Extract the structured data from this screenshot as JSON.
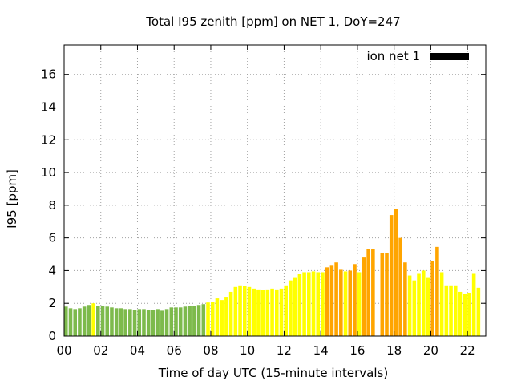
{
  "chart_data": {
    "type": "bar",
    "title": "Total I95 zenith [ppm] on NET 1, DoY=247",
    "xlabel": "Time of day UTC (15-minute intervals)",
    "ylabel": "I95 [ppm]",
    "xlim": [
      0,
      23
    ],
    "ylim": [
      0,
      17.8
    ],
    "x_ticks": [
      0,
      2,
      4,
      6,
      8,
      10,
      12,
      14,
      16,
      18,
      20,
      22
    ],
    "x_tick_labels": [
      "00",
      "02",
      "04",
      "06",
      "08",
      "10",
      "12",
      "14",
      "16",
      "18",
      "20",
      "22"
    ],
    "y_ticks": [
      0,
      2,
      4,
      6,
      8,
      10,
      12,
      14,
      16
    ],
    "y_tick_labels": [
      "0",
      "2",
      "4",
      "6",
      "8",
      "10",
      "12",
      "14",
      "16"
    ],
    "grid": true,
    "legend_position": "top-right",
    "legend": [
      {
        "label": "ion net 1",
        "color": "#000000"
      }
    ],
    "interval_hours": 0.25,
    "colors": {
      "green": "#7dba4c",
      "yellow": "#ffff00",
      "orange": "#ffa500"
    },
    "bars": [
      {
        "x": 0.0,
        "y": 1.8,
        "c": "green"
      },
      {
        "x": 0.25,
        "y": 1.7,
        "c": "green"
      },
      {
        "x": 0.5,
        "y": 1.65,
        "c": "green"
      },
      {
        "x": 0.75,
        "y": 1.7,
        "c": "green"
      },
      {
        "x": 1.0,
        "y": 1.8,
        "c": "green"
      },
      {
        "x": 1.25,
        "y": 1.9,
        "c": "green"
      },
      {
        "x": 1.5,
        "y": 2.0,
        "c": "yellow"
      },
      {
        "x": 1.75,
        "y": 1.85,
        "c": "green"
      },
      {
        "x": 2.0,
        "y": 1.85,
        "c": "green"
      },
      {
        "x": 2.25,
        "y": 1.8,
        "c": "green"
      },
      {
        "x": 2.5,
        "y": 1.75,
        "c": "green"
      },
      {
        "x": 2.75,
        "y": 1.7,
        "c": "green"
      },
      {
        "x": 3.0,
        "y": 1.7,
        "c": "green"
      },
      {
        "x": 3.25,
        "y": 1.65,
        "c": "green"
      },
      {
        "x": 3.5,
        "y": 1.65,
        "c": "green"
      },
      {
        "x": 3.75,
        "y": 1.6,
        "c": "green"
      },
      {
        "x": 4.0,
        "y": 1.65,
        "c": "green"
      },
      {
        "x": 4.25,
        "y": 1.65,
        "c": "green"
      },
      {
        "x": 4.5,
        "y": 1.6,
        "c": "green"
      },
      {
        "x": 4.75,
        "y": 1.6,
        "c": "green"
      },
      {
        "x": 5.0,
        "y": 1.65,
        "c": "green"
      },
      {
        "x": 5.25,
        "y": 1.55,
        "c": "green"
      },
      {
        "x": 5.5,
        "y": 1.65,
        "c": "green"
      },
      {
        "x": 5.75,
        "y": 1.75,
        "c": "green"
      },
      {
        "x": 6.0,
        "y": 1.75,
        "c": "green"
      },
      {
        "x": 6.25,
        "y": 1.75,
        "c": "green"
      },
      {
        "x": 6.5,
        "y": 1.8,
        "c": "green"
      },
      {
        "x": 6.75,
        "y": 1.85,
        "c": "green"
      },
      {
        "x": 7.0,
        "y": 1.85,
        "c": "green"
      },
      {
        "x": 7.25,
        "y": 1.9,
        "c": "green"
      },
      {
        "x": 7.5,
        "y": 1.95,
        "c": "green"
      },
      {
        "x": 7.75,
        "y": 2.05,
        "c": "yellow"
      },
      {
        "x": 8.0,
        "y": 2.1,
        "c": "yellow"
      },
      {
        "x": 8.25,
        "y": 2.3,
        "c": "yellow"
      },
      {
        "x": 8.5,
        "y": 2.2,
        "c": "yellow"
      },
      {
        "x": 8.75,
        "y": 2.4,
        "c": "yellow"
      },
      {
        "x": 9.0,
        "y": 2.7,
        "c": "yellow"
      },
      {
        "x": 9.25,
        "y": 3.0,
        "c": "yellow"
      },
      {
        "x": 9.5,
        "y": 3.1,
        "c": "yellow"
      },
      {
        "x": 9.75,
        "y": 3.05,
        "c": "yellow"
      },
      {
        "x": 10.0,
        "y": 3.0,
        "c": "yellow"
      },
      {
        "x": 10.25,
        "y": 2.9,
        "c": "yellow"
      },
      {
        "x": 10.5,
        "y": 2.85,
        "c": "yellow"
      },
      {
        "x": 10.75,
        "y": 2.8,
        "c": "yellow"
      },
      {
        "x": 11.0,
        "y": 2.85,
        "c": "yellow"
      },
      {
        "x": 11.25,
        "y": 2.9,
        "c": "yellow"
      },
      {
        "x": 11.5,
        "y": 2.85,
        "c": "yellow"
      },
      {
        "x": 11.75,
        "y": 2.9,
        "c": "yellow"
      },
      {
        "x": 12.0,
        "y": 3.1,
        "c": "yellow"
      },
      {
        "x": 12.25,
        "y": 3.4,
        "c": "yellow"
      },
      {
        "x": 12.5,
        "y": 3.6,
        "c": "yellow"
      },
      {
        "x": 12.75,
        "y": 3.8,
        "c": "yellow"
      },
      {
        "x": 13.0,
        "y": 3.9,
        "c": "yellow"
      },
      {
        "x": 13.25,
        "y": 3.9,
        "c": "yellow"
      },
      {
        "x": 13.5,
        "y": 3.95,
        "c": "yellow"
      },
      {
        "x": 13.75,
        "y": 3.9,
        "c": "yellow"
      },
      {
        "x": 14.0,
        "y": 3.9,
        "c": "yellow"
      },
      {
        "x": 14.25,
        "y": 4.2,
        "c": "orange"
      },
      {
        "x": 14.5,
        "y": 4.3,
        "c": "orange"
      },
      {
        "x": 14.75,
        "y": 4.5,
        "c": "orange"
      },
      {
        "x": 15.0,
        "y": 4.05,
        "c": "orange"
      },
      {
        "x": 15.25,
        "y": 3.95,
        "c": "yellow"
      },
      {
        "x": 15.5,
        "y": 4.0,
        "c": "orange"
      },
      {
        "x": 15.75,
        "y": 4.4,
        "c": "orange"
      },
      {
        "x": 16.0,
        "y": 3.9,
        "c": "yellow"
      },
      {
        "x": 16.25,
        "y": 4.8,
        "c": "orange"
      },
      {
        "x": 16.5,
        "y": 5.3,
        "c": "orange"
      },
      {
        "x": 16.75,
        "y": 5.3,
        "c": "orange"
      },
      {
        "x": 17.25,
        "y": 5.1,
        "c": "orange"
      },
      {
        "x": 17.5,
        "y": 5.1,
        "c": "orange"
      },
      {
        "x": 17.75,
        "y": 7.4,
        "c": "orange"
      },
      {
        "x": 18.0,
        "y": 7.75,
        "c": "orange"
      },
      {
        "x": 18.25,
        "y": 6.0,
        "c": "orange"
      },
      {
        "x": 18.5,
        "y": 4.5,
        "c": "orange"
      },
      {
        "x": 18.75,
        "y": 3.7,
        "c": "yellow"
      },
      {
        "x": 19.0,
        "y": 3.4,
        "c": "yellow"
      },
      {
        "x": 19.25,
        "y": 3.85,
        "c": "yellow"
      },
      {
        "x": 19.5,
        "y": 4.0,
        "c": "yellow"
      },
      {
        "x": 19.75,
        "y": 3.6,
        "c": "yellow"
      },
      {
        "x": 20.0,
        "y": 4.6,
        "c": "orange"
      },
      {
        "x": 20.25,
        "y": 5.45,
        "c": "orange"
      },
      {
        "x": 20.5,
        "y": 3.9,
        "c": "yellow"
      },
      {
        "x": 20.75,
        "y": 3.1,
        "c": "yellow"
      },
      {
        "x": 21.0,
        "y": 3.1,
        "c": "yellow"
      },
      {
        "x": 21.25,
        "y": 3.1,
        "c": "yellow"
      },
      {
        "x": 21.5,
        "y": 2.7,
        "c": "yellow"
      },
      {
        "x": 21.75,
        "y": 2.6,
        "c": "yellow"
      },
      {
        "x": 22.0,
        "y": 2.65,
        "c": "yellow"
      },
      {
        "x": 22.25,
        "y": 3.85,
        "c": "yellow"
      },
      {
        "x": 22.5,
        "y": 2.95,
        "c": "yellow"
      }
    ]
  }
}
